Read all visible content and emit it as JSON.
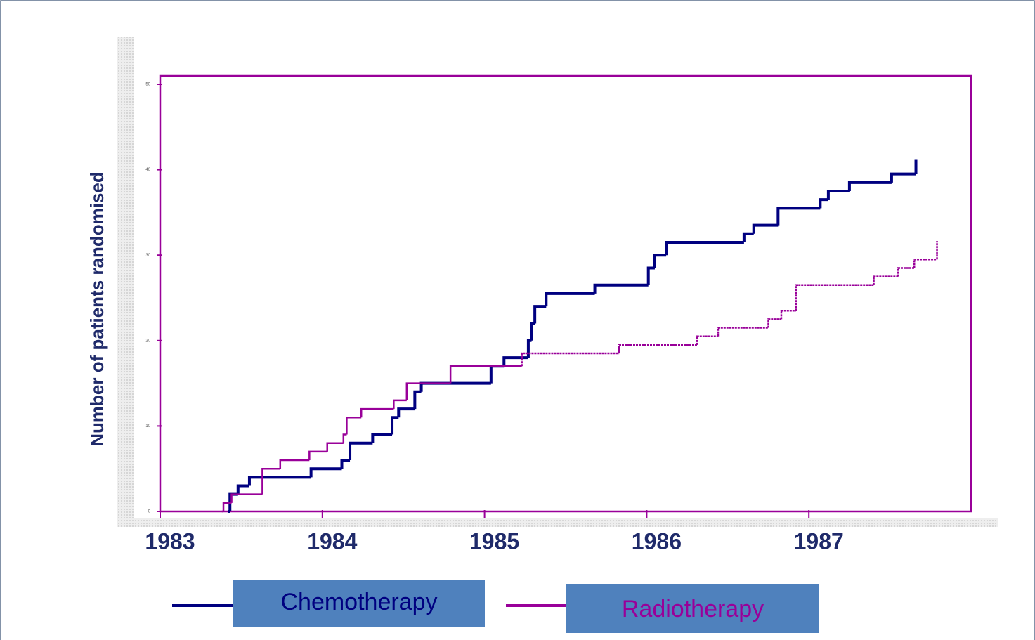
{
  "chart_data": {
    "type": "step-line",
    "ylabel": "Number of patients randomised",
    "xlim": [
      1983,
      1988
    ],
    "xticks": [
      1983,
      1984,
      1985,
      1986,
      1987
    ],
    "ylim": [
      0,
      50
    ],
    "yticks": [
      0,
      10,
      20,
      30,
      40,
      50
    ],
    "series": [
      {
        "name": "Chemotherapy",
        "color": "#000080",
        "x": [
          1983.42,
          1983.43,
          1983.48,
          1983.55,
          1983.93,
          1984.12,
          1984.17,
          1984.31,
          1984.43,
          1984.47,
          1984.57,
          1984.61,
          1985.04,
          1985.12,
          1985.27,
          1985.29,
          1985.31,
          1985.38,
          1985.68,
          1986.01,
          1986.05,
          1986.12,
          1986.6,
          1986.66,
          1986.81,
          1987.07,
          1987.12,
          1987.25,
          1987.51,
          1987.66
        ],
        "values": [
          0,
          2,
          3,
          4,
          5,
          6,
          8,
          9,
          11,
          12,
          14,
          15,
          17,
          18,
          20,
          22,
          24,
          25.5,
          26.5,
          28.5,
          30,
          31.5,
          32.5,
          33.5,
          35.5,
          36.5,
          37.5,
          38.5,
          39.5,
          40.5
        ]
      },
      {
        "name": "Radiotherapy",
        "color": "#990099",
        "x": [
          1983.38,
          1983.39,
          1983.44,
          1983.63,
          1983.74,
          1983.92,
          1984.03,
          1984.13,
          1984.15,
          1984.24,
          1984.44,
          1984.52,
          1984.79,
          1985.23,
          1985.83,
          1986.31,
          1986.44,
          1986.75,
          1986.83,
          1986.92,
          1987.4,
          1987.55,
          1987.65,
          1987.79
        ],
        "values": [
          0,
          1,
          2,
          5,
          6,
          7,
          8,
          9,
          11,
          12,
          13,
          15,
          17,
          18.5,
          19.5,
          20.5,
          21.5,
          22.5,
          23.5,
          26.5,
          27.5,
          28.5,
          29.5,
          31
        ]
      }
    ]
  }
}
